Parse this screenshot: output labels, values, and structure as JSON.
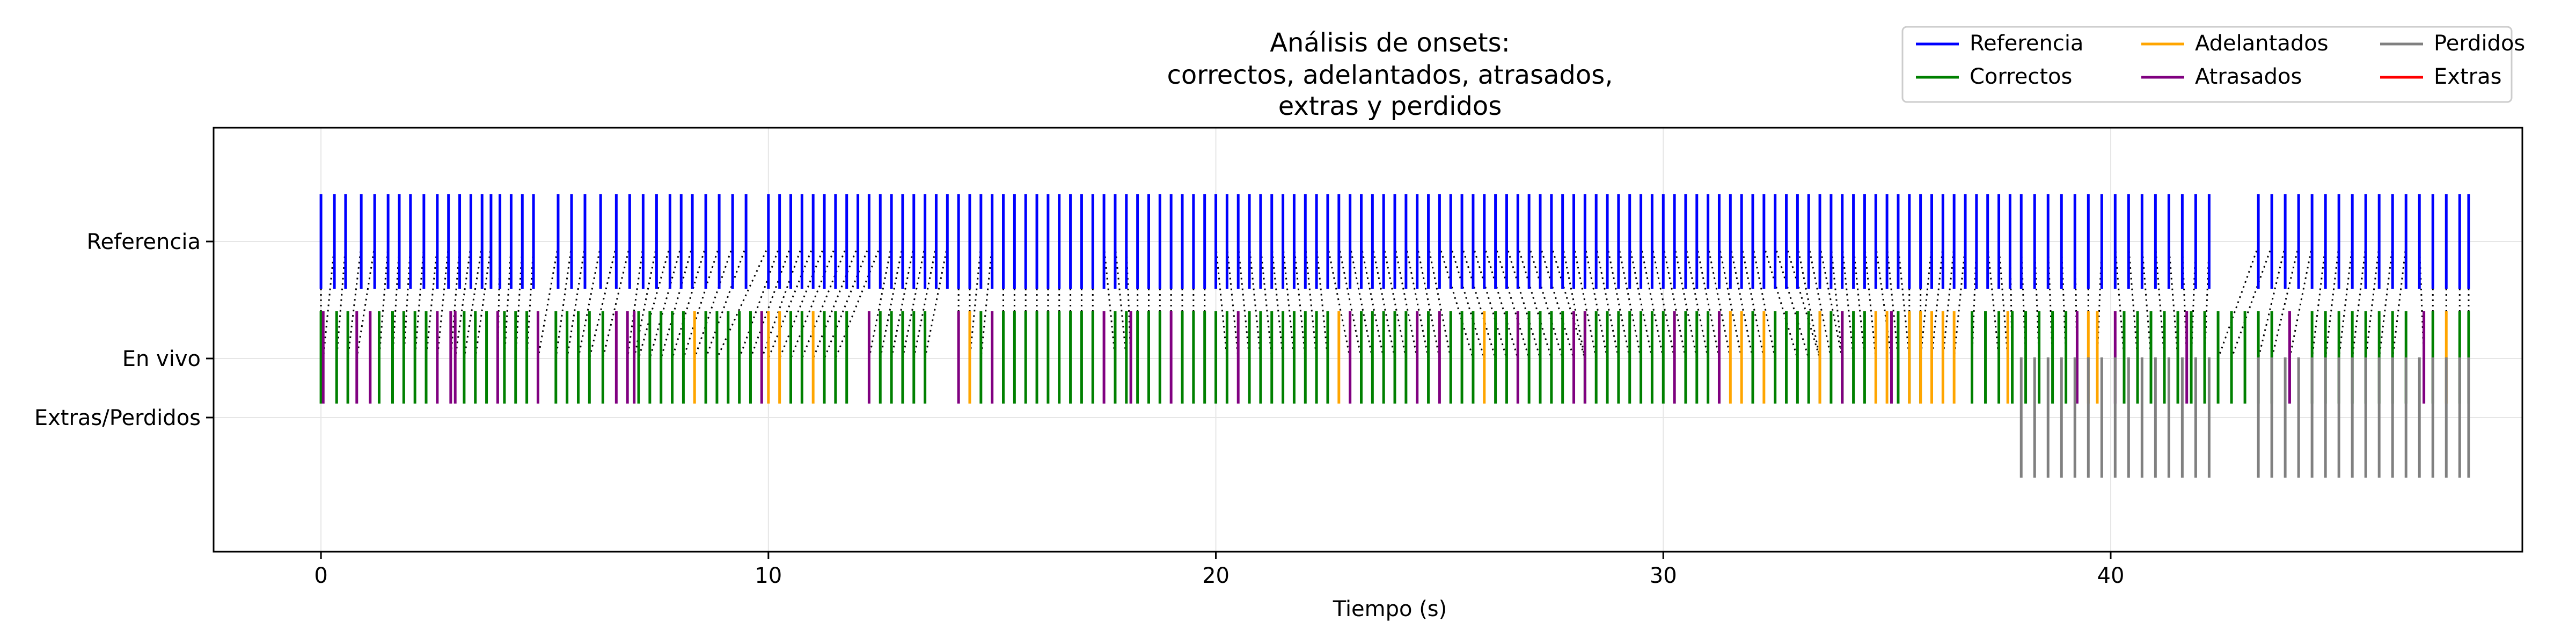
{
  "chart_data": {
    "type": "eventplot",
    "title": [
      "Análisis de onsets:",
      "correctos, adelantados, atrasados,",
      "extras y perdidos"
    ],
    "xlabel": "Tiempo (s)",
    "ylabel": "",
    "xlim": [
      -2.4,
      49.2
    ],
    "x_ticks": [
      0,
      10,
      20,
      30,
      40
    ],
    "y_tick_labels": [
      "Referencia",
      "En vivo",
      "Extras/Perdidos"
    ],
    "grid": true,
    "legend": {
      "placement": "top-right",
      "entries": [
        {
          "label": "Referencia",
          "color": "#0000ff"
        },
        {
          "label": "Correctos",
          "color": "#008000"
        },
        {
          "label": "Adelantados",
          "color": "#ffa500"
        },
        {
          "label": "Atrasados",
          "color": "#800080"
        },
        {
          "label": "Perdidos",
          "color": "#808080"
        },
        {
          "label": "Extras",
          "color": "#ff0000"
        }
      ]
    },
    "colors": {
      "reference": "#0000ff",
      "correct": "#008000",
      "early": "#ffa500",
      "late": "#800080",
      "missed": "#808080",
      "extra": "#ff0000",
      "connection": "#000000"
    },
    "series": [
      {
        "name": "Referencia",
        "row": "Referencia",
        "x": [
          0,
          0.3,
          0.55,
          0.9,
          1.2,
          1.5,
          1.75,
          2.0,
          2.3,
          2.6,
          2.85,
          3.1,
          3.35,
          3.6,
          3.8,
          4.0,
          4.25,
          4.5,
          4.75,
          5.3,
          5.6,
          5.9,
          6.25,
          6.6,
          6.9,
          7.2,
          7.5,
          7.8,
          8.05,
          8.3,
          8.6,
          8.9,
          9.2,
          9.5,
          10.0,
          10.25,
          10.5,
          10.75,
          11.0,
          11.25,
          11.5,
          11.75,
          12.0,
          12.25,
          12.5,
          12.75,
          13.0,
          13.25,
          13.5,
          13.75,
          14.0,
          14.25,
          14.5,
          14.75,
          15.0,
          15.25,
          15.5,
          15.75,
          16.0,
          16.25,
          16.5,
          16.75,
          17.0,
          17.25,
          17.5,
          17.75,
          18.0,
          18.25,
          18.5,
          18.75,
          19.0,
          19.25,
          19.5,
          19.75,
          20.0,
          20.25,
          20.5,
          20.75,
          21.0,
          21.25,
          21.5,
          21.75,
          22.0,
          22.25,
          22.5,
          22.75,
          23.0,
          23.25,
          23.5,
          23.75,
          24.0,
          24.25,
          24.5,
          24.75,
          25.0,
          25.25,
          25.5,
          25.75,
          26.0,
          26.25,
          26.5,
          26.75,
          27.0,
          27.25,
          27.5,
          27.75,
          28.0,
          28.25,
          28.5,
          28.75,
          29.0,
          29.25,
          29.5,
          29.75,
          30.0,
          30.25,
          30.5,
          30.75,
          31.0,
          31.25,
          31.5,
          31.75,
          32.0,
          32.25,
          32.5,
          32.75,
          33.0,
          33.25,
          33.5,
          33.75,
          34.0,
          34.25,
          34.5,
          34.75,
          35.0,
          35.25,
          35.5,
          35.75,
          36.0,
          36.25,
          36.5,
          36.75,
          37.0,
          37.25,
          37.5,
          37.75,
          38.0,
          38.3,
          38.6,
          38.9,
          39.2,
          39.5,
          39.8,
          40.1,
          40.4,
          40.7,
          41.0,
          41.3,
          41.6,
          41.9,
          42.2,
          43.3,
          43.6,
          43.9,
          44.2,
          44.5,
          44.8,
          45.1,
          45.4,
          45.7,
          46.0,
          46.3,
          46.6,
          46.9,
          47.2,
          47.5,
          47.8,
          48.0
        ]
      },
      {
        "name": "Correctos",
        "row": "En vivo",
        "x": [
          0,
          0.35,
          0.6,
          1.3,
          1.6,
          1.85,
          2.1,
          2.35,
          3.2,
          3.45,
          3.7,
          4.1,
          4.35,
          4.6,
          5.25,
          5.5,
          5.75,
          6.0,
          6.3,
          7.1,
          7.35,
          7.6,
          7.85,
          8.1,
          8.6,
          8.85,
          9.1,
          9.35,
          9.6,
          10.5,
          10.75,
          11.25,
          11.5,
          11.75,
          12.5,
          12.75,
          13.0,
          13.25,
          13.5,
          14.5,
          14.75,
          15.25,
          15.5,
          15.75,
          16.0,
          16.25,
          16.5,
          16.75,
          17.0,
          17.25,
          17.75,
          18.0,
          18.25,
          18.5,
          18.75,
          19.25,
          19.5,
          19.75,
          20.0,
          20.25,
          20.75,
          21.0,
          21.25,
          21.5,
          21.75,
          22.0,
          22.25,
          22.5,
          23.25,
          23.5,
          23.75,
          24.0,
          24.25,
          24.75,
          25.25,
          25.5,
          25.75,
          26.25,
          26.5,
          27.0,
          27.25,
          27.5,
          27.75,
          28.0,
          28.25,
          28.5,
          28.75,
          29.0,
          29.25,
          29.5,
          29.75,
          30.0,
          30.25,
          30.5,
          30.75,
          31.0,
          32.0,
          32.5,
          32.75,
          33.0,
          33.25,
          33.5,
          33.75,
          34.0,
          34.25,
          34.5,
          35.25,
          35.5,
          35.75,
          36.9,
          37.2,
          37.5,
          37.8,
          38.1,
          38.4,
          38.7,
          39.0,
          40.3,
          40.6,
          40.9,
          41.2,
          41.5,
          41.8,
          42.1,
          42.4,
          42.7,
          43.0,
          43.3,
          43.6,
          44.5,
          44.8,
          45.1,
          45.4,
          45.7,
          46.0,
          46.3,
          46.6,
          47.2,
          47.8,
          48.0
        ]
      },
      {
        "name": "Adelantados",
        "row": "En vivo",
        "x": [
          8.35,
          10.0,
          10.25,
          11.0,
          14.5,
          22.75,
          26.0,
          31.5,
          31.75,
          32.25,
          33.5,
          34.75,
          35.0,
          35.5,
          35.75,
          36.0,
          36.25,
          36.5,
          37.7,
          39.5,
          39.7,
          47.5
        ]
      },
      {
        "name": "Atrasados",
        "row": "En vivo",
        "x": [
          0.05,
          0.8,
          1.1,
          2.6,
          2.9,
          3.0,
          3.95,
          4.85,
          6.6,
          6.85,
          7.0,
          9.85,
          12.25,
          14.25,
          15.0,
          17.5,
          18.1,
          19.0,
          20.5,
          23.0,
          24.5,
          25.0,
          26.75,
          28.0,
          28.25,
          30.25,
          31.25,
          34.0,
          35.1,
          39.25,
          40.1,
          41.7,
          44.0,
          47.0
        ]
      },
      {
        "name": "Perdidos",
        "row": "Extras/Perdidos",
        "x": [
          38.0,
          38.3,
          38.6,
          38.9,
          39.2,
          39.5,
          39.8,
          40.1,
          40.4,
          40.7,
          41.0,
          41.3,
          41.6,
          41.9,
          42.2,
          43.3,
          43.6,
          43.9,
          44.2,
          44.5,
          44.8,
          45.1,
          45.4,
          45.7,
          46.0,
          46.3,
          46.6,
          46.9,
          47.2,
          47.5,
          47.8,
          48.0
        ]
      },
      {
        "name": "Extras",
        "row": "Extras/Perdidos",
        "x": []
      }
    ]
  }
}
